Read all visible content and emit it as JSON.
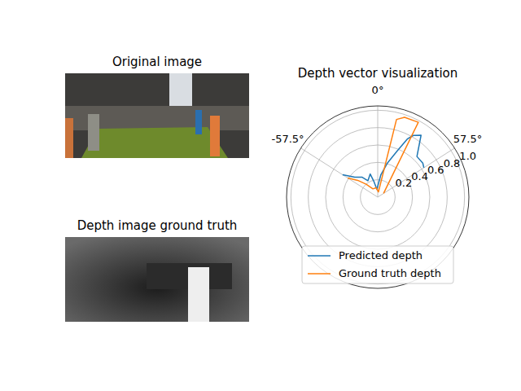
{
  "chart_data": [
    {
      "type": "image",
      "title": "Original image"
    },
    {
      "type": "image",
      "title": "Depth image ground truth"
    },
    {
      "type": "polar_line",
      "title": "Depth vector visualization",
      "xlim": [
        -180,
        180
      ],
      "xticks": [
        {
          "value": -57.5,
          "label": "-57.5°"
        },
        {
          "value": 0,
          "label": "0°"
        },
        {
          "value": 57.5,
          "label": "57.5°"
        }
      ],
      "ylim": [
        0,
        1.05
      ],
      "yticks": [
        0.2,
        0.4,
        0.6,
        0.8,
        {
          "value": 1,
          "label": "1.0"
        }
      ],
      "grid": true,
      "legend": "lower center",
      "series": [
        {
          "name": "Predicted depth",
          "color": "#1f77b4",
          "x": [
            -57.5,
            -49,
            -38,
            -31,
            -18,
            -14,
            -6,
            8,
            16,
            23,
            27,
            30,
            35,
            44,
            53,
            57.5
          ],
          "values": [
            0.48,
            0.35,
            0.29,
            0.22,
            0.28,
            0.19,
            0.09,
            0.26,
            0.41,
            0.58,
            0.75,
            0.82,
            0.87,
            0.65,
            0.65,
            0.63
          ]
        },
        {
          "name": "Ground truth depth",
          "color": "#ff7f0e",
          "x": [
            -57.5,
            -50,
            -42,
            -30,
            -10,
            8,
            13.6,
            18.6,
            28.5,
            57.5
          ],
          "values": [
            0.41,
            0.3,
            0.2,
            0.11,
            0.11,
            0.06,
            0.92,
            0.97,
            0.98,
            0.08
          ]
        }
      ]
    }
  ]
}
